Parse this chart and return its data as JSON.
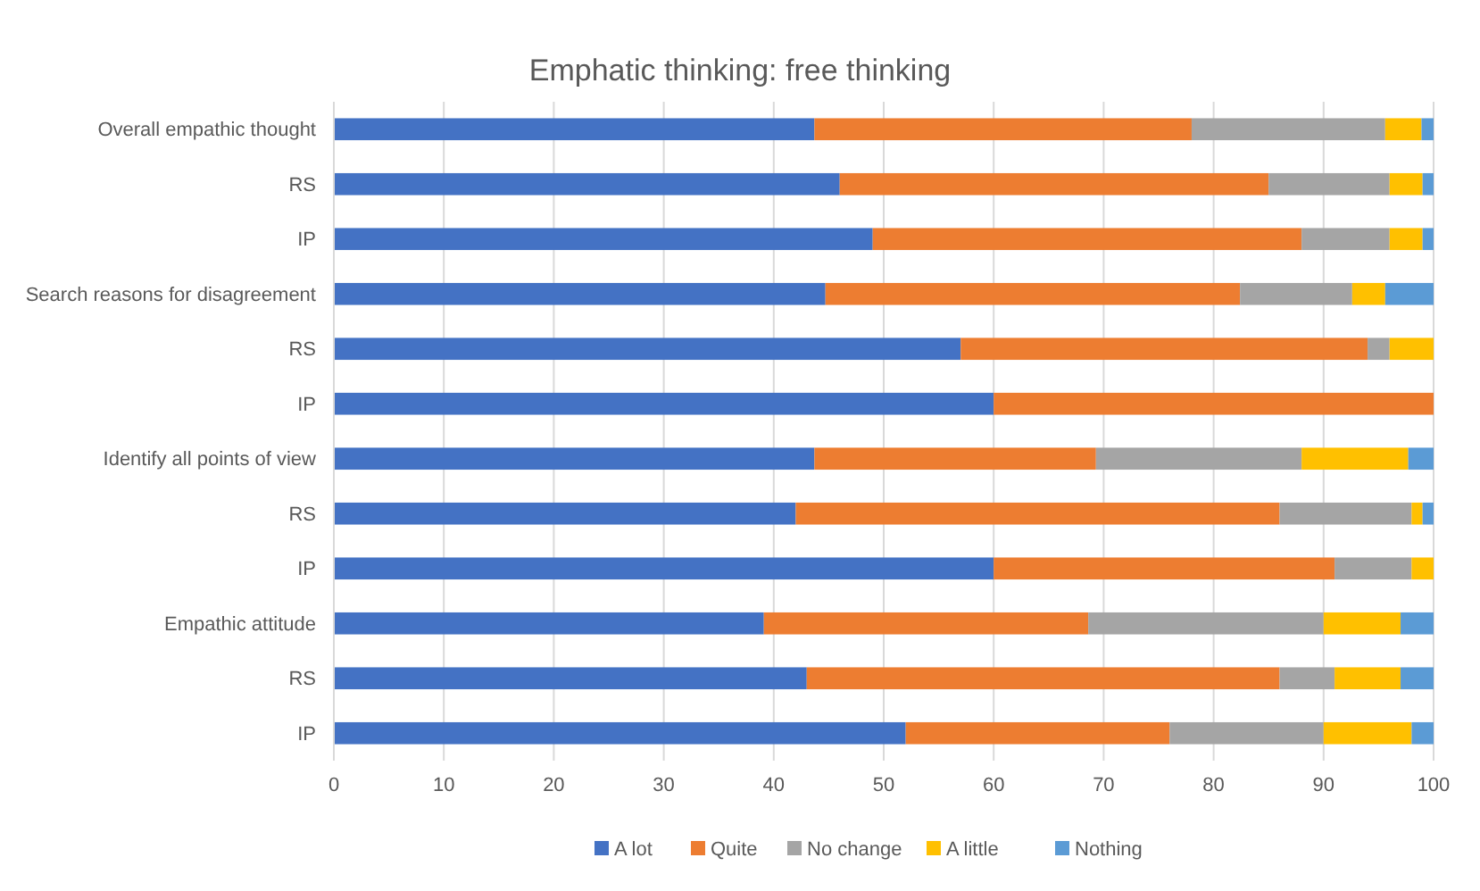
{
  "chart_data": {
    "type": "bar",
    "orientation": "horizontal",
    "stacked": true,
    "title": "Emphatic thinking: free thinking",
    "categories": [
      "Overall empathic thought",
      "RS",
      "IP",
      "Search reasons for disagreement",
      "RS",
      "IP",
      "Identify all points of view",
      "RS",
      "IP",
      "Empathic attitude",
      "RS",
      "IP"
    ],
    "series": [
      {
        "name": "A lot",
        "color": "#4472c4",
        "values": [
          43.7,
          46,
          49,
          44.7,
          57,
          60,
          43.7,
          42,
          60,
          39.1,
          43,
          52
        ]
      },
      {
        "name": "Quite",
        "color": "#ed7d31",
        "values": [
          34.3,
          39,
          39,
          37.7,
          37,
          40,
          25.6,
          44,
          31,
          29.5,
          43,
          24
        ]
      },
      {
        "name": "No change",
        "color": "#a5a5a5",
        "values": [
          17.6,
          11,
          8,
          10.2,
          2,
          0,
          18.7,
          12,
          7,
          21.4,
          5,
          14
        ]
      },
      {
        "name": "A little",
        "color": "#ffc000",
        "values": [
          3.3,
          3,
          3,
          3,
          4,
          0,
          9.7,
          1,
          2,
          7,
          6,
          8
        ]
      },
      {
        "name": "Nothing",
        "color": "#5b9bd5",
        "values": [
          1.1,
          1,
          1,
          4.4,
          0,
          0,
          2.3,
          1,
          0,
          3,
          3,
          2
        ]
      }
    ],
    "xlim": [
      0,
      100
    ],
    "xticks": [
      0,
      10,
      20,
      30,
      40,
      50,
      60,
      70,
      80,
      90,
      100
    ],
    "grid": "x",
    "legend": "bottom"
  }
}
